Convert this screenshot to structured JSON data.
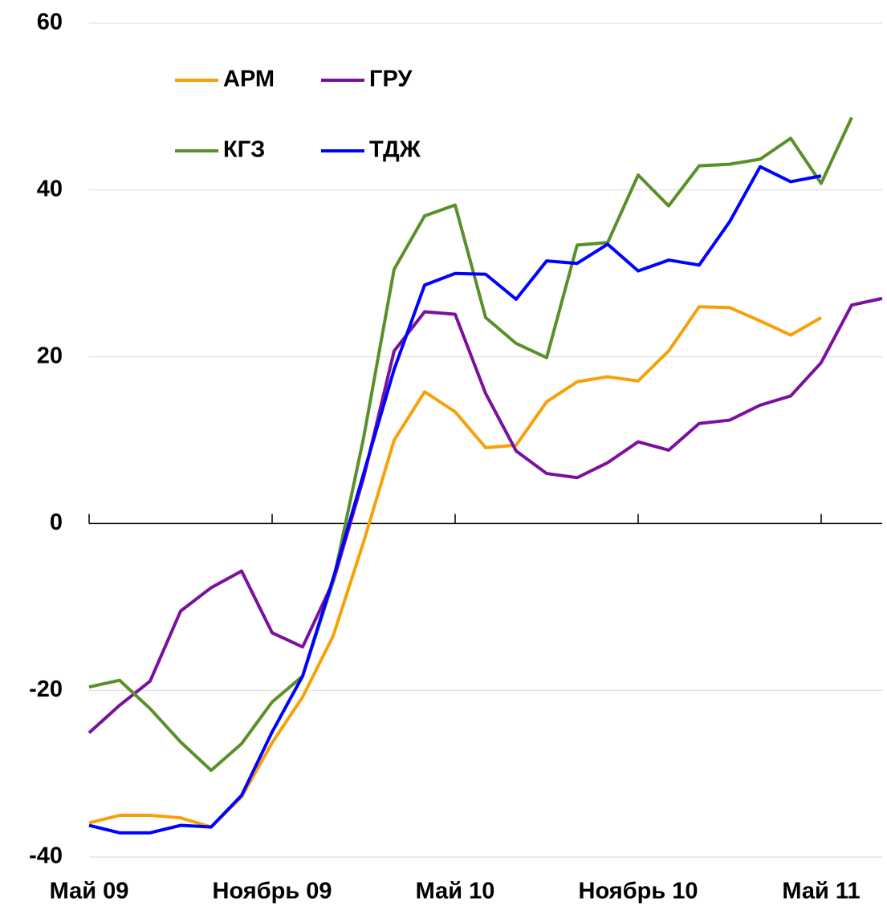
{
  "chart_data": {
    "type": "line",
    "categories": [
      "Май 09",
      null,
      null,
      null,
      null,
      null,
      "Ноябрь 09",
      null,
      null,
      null,
      null,
      null,
      "Май 10",
      null,
      null,
      null,
      null,
      null,
      "Ноябрь 10",
      null,
      null,
      null,
      null,
      null,
      "Май 11",
      null,
      null
    ],
    "series": [
      {
        "name": "АРМ",
        "color": "#f7a10a",
        "values": [
          -35.9,
          -35.0,
          -35.0,
          -35.3,
          -36.4,
          -32.8,
          -26.3,
          -20.8,
          -13.5,
          -2.2,
          10.0,
          15.8,
          13.4,
          9.1,
          9.4,
          14.6,
          17.0,
          17.6,
          17.1,
          20.7,
          26.0,
          25.9,
          24.3,
          22.6,
          24.7,
          null,
          null
        ]
      },
      {
        "name": "ГРУ",
        "color": "#7b109e",
        "values": [
          -25.1,
          -21.8,
          -18.9,
          -10.5,
          -7.7,
          -5.7,
          -13.1,
          -14.8,
          -7.0,
          5.5,
          20.7,
          25.4,
          25.1,
          15.6,
          8.7,
          6.0,
          5.5,
          7.3,
          9.8,
          8.8,
          12.0,
          12.4,
          14.2,
          15.3,
          19.3,
          26.2,
          27.0
        ]
      },
      {
        "name": "КГЗ",
        "color": "#5a8f2a",
        "values": [
          -19.6,
          -18.8,
          -22.2,
          -26.2,
          -29.6,
          -26.4,
          -21.4,
          -18.3,
          -7.0,
          10.3,
          30.5,
          36.9,
          38.2,
          24.7,
          21.6,
          19.9,
          33.4,
          33.7,
          41.8,
          38.1,
          42.9,
          43.1,
          43.7,
          46.2,
          40.8,
          48.7,
          null
        ]
      },
      {
        "name": "ТДЖ",
        "color": "#0000ff",
        "values": [
          -36.2,
          -37.1,
          -37.1,
          -36.2,
          -36.4,
          -32.6,
          -25.0,
          -18.3,
          -6.6,
          6.0,
          18.5,
          28.6,
          30.0,
          29.9,
          26.9,
          31.5,
          31.2,
          33.5,
          30.3,
          31.6,
          31.0,
          36.2,
          42.8,
          41.0,
          41.7,
          null,
          null
        ]
      }
    ],
    "ylim": [
      -40,
      60
    ],
    "yticks": [
      -40,
      -20,
      0,
      20,
      40,
      60
    ],
    "grid": true,
    "legend": "upper left"
  }
}
